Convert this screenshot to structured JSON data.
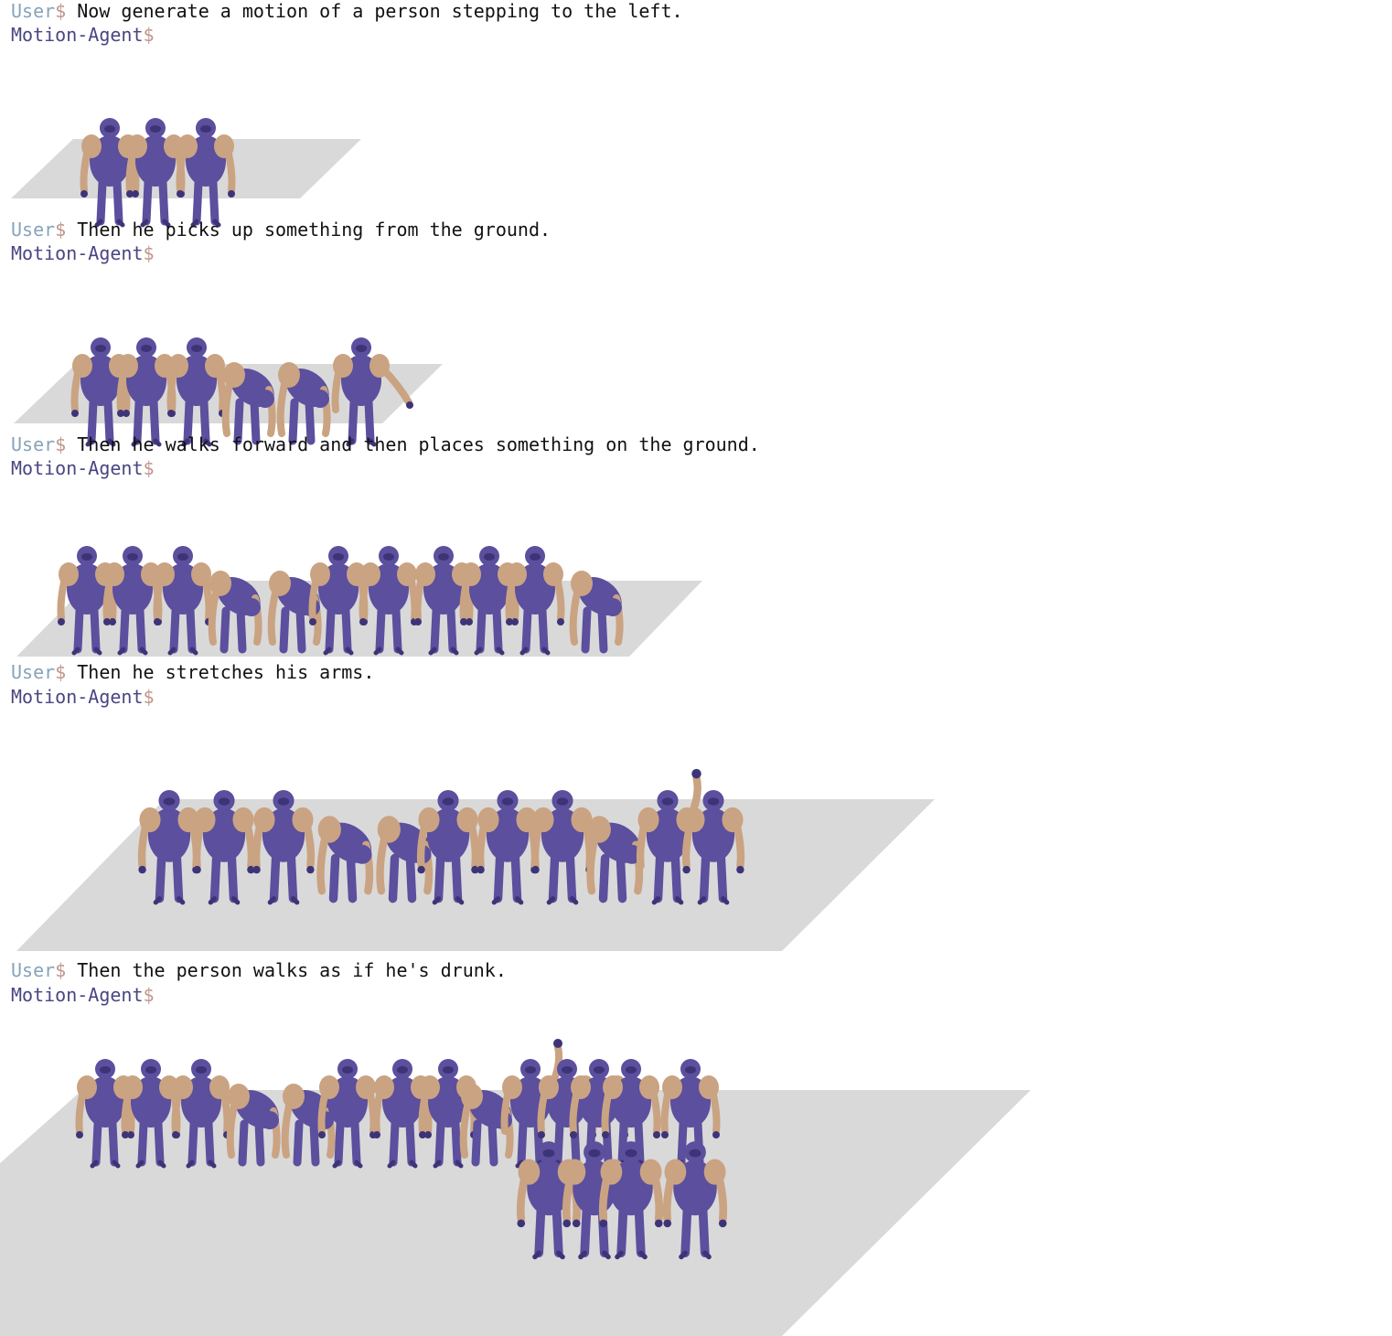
{
  "prompt": {
    "user": "User",
    "agent": "Motion-Agent",
    "sign": "$"
  },
  "colors": {
    "user": "#86a3bb",
    "agent": "#494582",
    "sign": "#c2958d",
    "floor": "#d9d9d9",
    "suit": "#5b4f9e",
    "skin": "#caa382"
  },
  "turns": [
    {
      "user_text": "Now generate a motion of a person stepping to the left."
    },
    {
      "user_text": "Then he picks up something from the ground."
    },
    {
      "user_text": "Then he walks forward and then places something on the ground."
    },
    {
      "user_text": "Then he stretches his arms."
    },
    {
      "user_text": "Then the person walks as if he's drunk."
    }
  ]
}
